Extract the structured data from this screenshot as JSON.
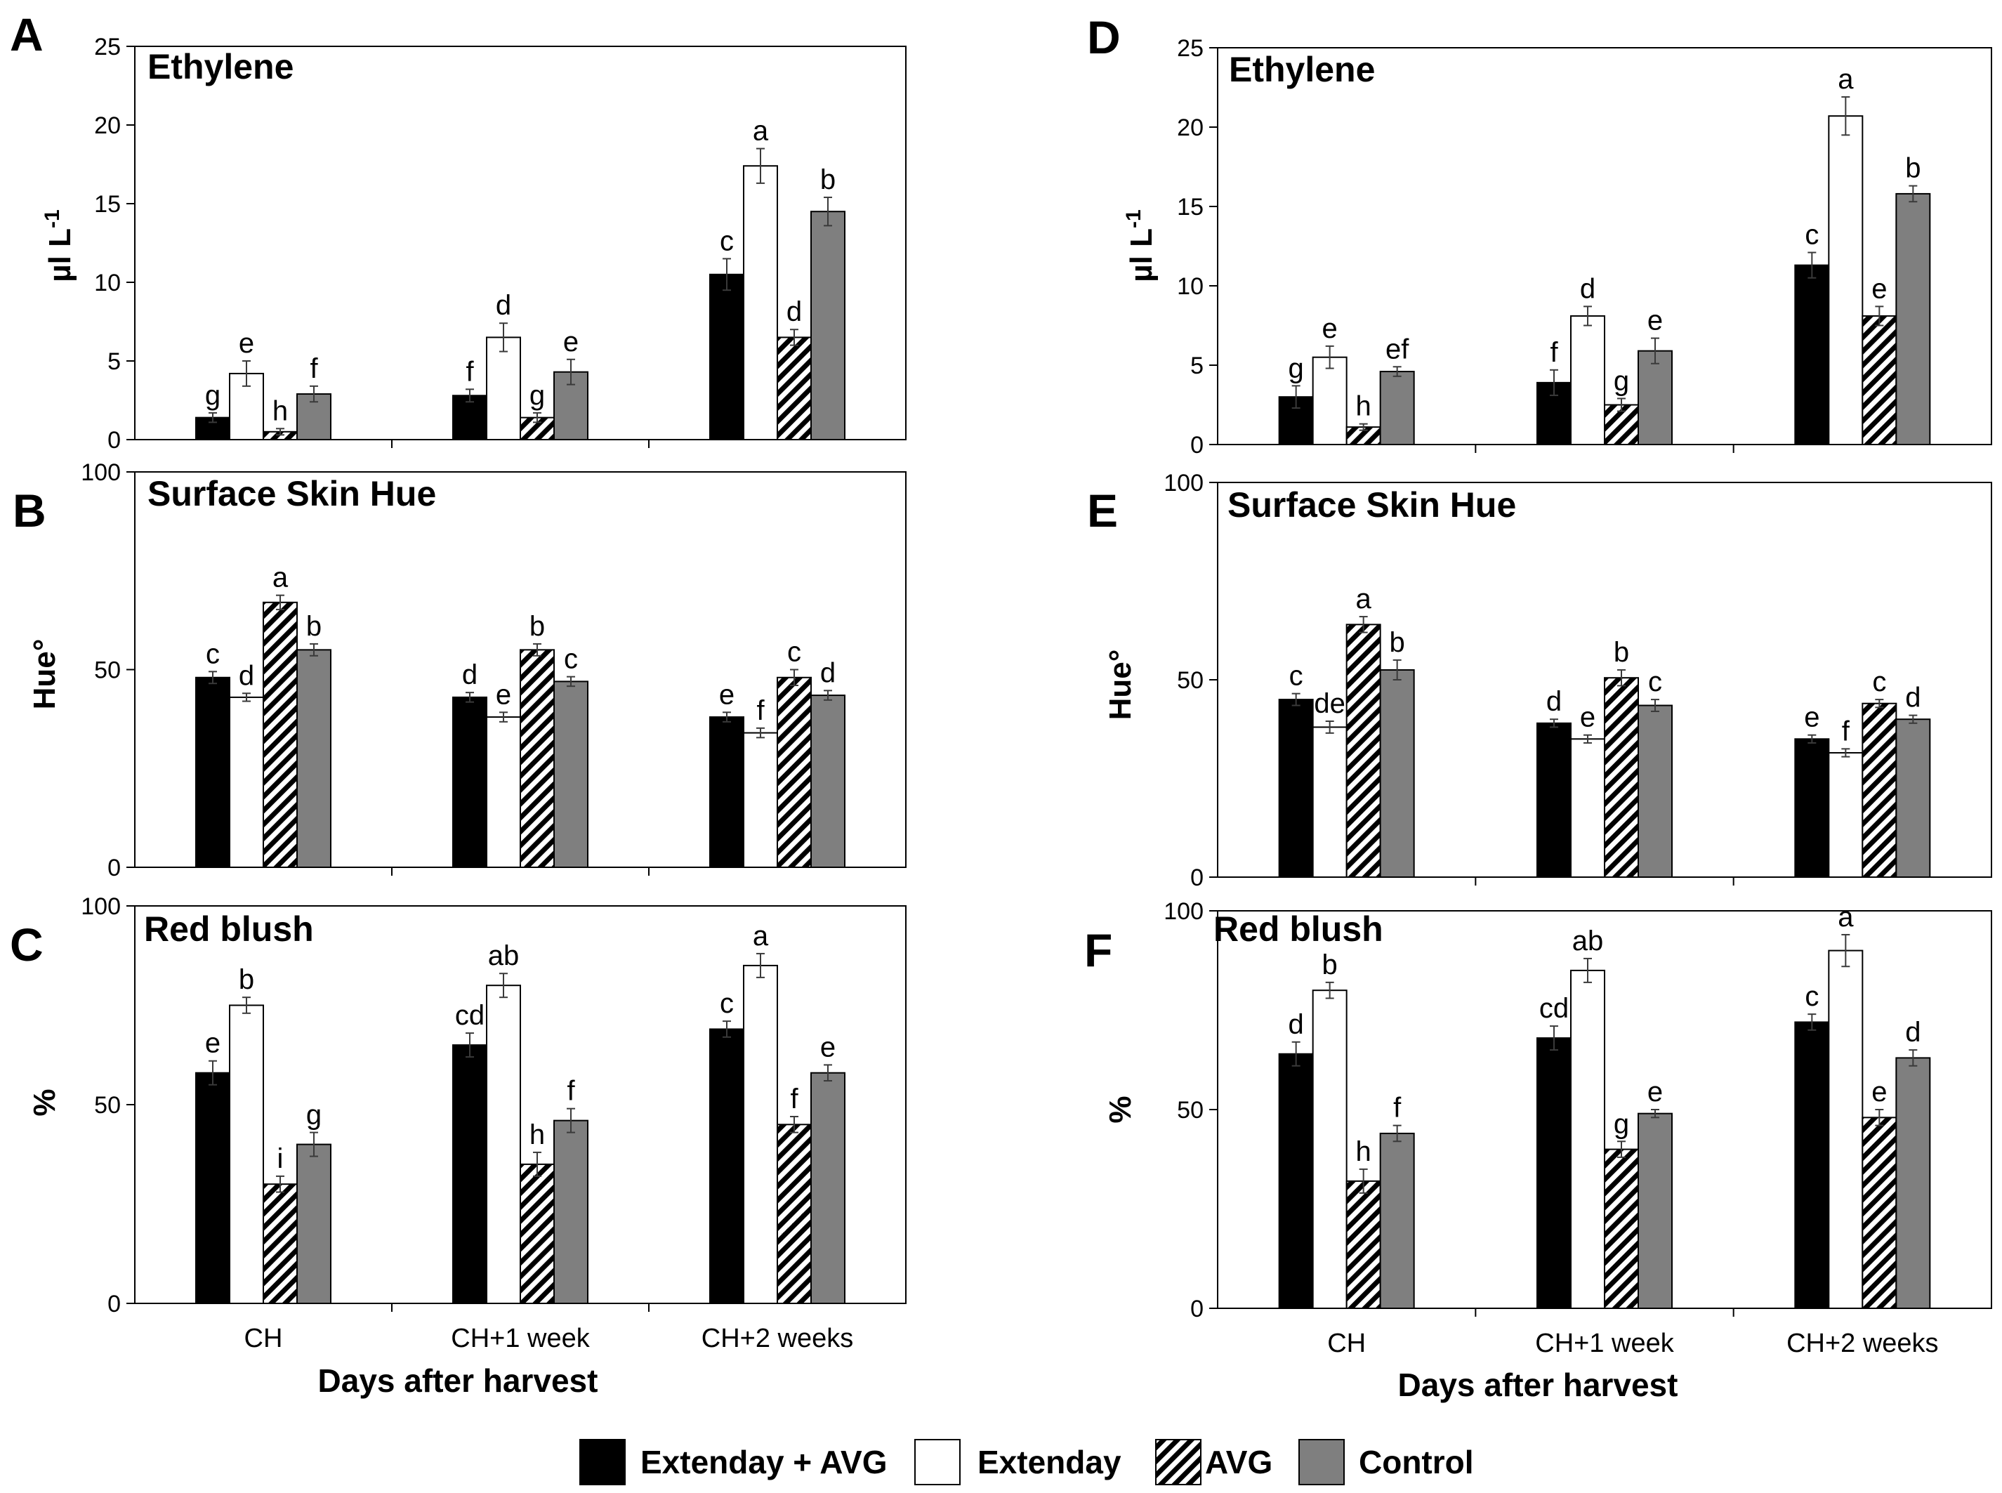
{
  "colors": {
    "extenday_avg": "#000000",
    "extenday": "#ffffff",
    "avg_hatch": "#000000",
    "control": "#7f7f7f"
  },
  "legend": [
    {
      "key": "extenday_avg",
      "label": "Extenday + AVG"
    },
    {
      "key": "extenday",
      "label": "Extenday"
    },
    {
      "key": "avg",
      "label": "AVG"
    },
    {
      "key": "control",
      "label": "Control"
    }
  ],
  "xlabel": "Days after harvest",
  "chart_data": [
    {
      "id": "A",
      "letter": "A",
      "type": "bar",
      "title": "Ethylene",
      "ylabel": "µl L-1",
      "ylim": [
        0,
        25
      ],
      "yticks": [
        0,
        5,
        10,
        15,
        20,
        25
      ],
      "categories": [
        "CH",
        "CH+1 week",
        "CH+2 weeks"
      ],
      "series": [
        {
          "name": "Extenday + AVG",
          "values": [
            1.4,
            2.8,
            10.5
          ],
          "errors": [
            0.3,
            0.4,
            1.0
          ],
          "letters": [
            "g",
            "f",
            "c"
          ]
        },
        {
          "name": "Extenday",
          "values": [
            4.2,
            6.5,
            17.4
          ],
          "errors": [
            0.8,
            0.9,
            1.1
          ],
          "letters": [
            "e",
            "d",
            "a"
          ]
        },
        {
          "name": "AVG",
          "values": [
            0.5,
            1.4,
            6.5
          ],
          "errors": [
            0.2,
            0.3,
            0.5
          ],
          "letters": [
            "h",
            "g",
            "d"
          ]
        },
        {
          "name": "Control",
          "values": [
            2.9,
            4.3,
            14.5
          ],
          "errors": [
            0.5,
            0.8,
            0.9
          ],
          "letters": [
            "f",
            "e",
            "b"
          ]
        }
      ]
    },
    {
      "id": "B",
      "letter": "B",
      "type": "bar",
      "title": "Surface Skin Hue",
      "ylabel": "Hue°",
      "ylim": [
        0,
        100
      ],
      "yticks": [
        0,
        50,
        100
      ],
      "categories": [
        "CH",
        "CH+1 week",
        "CH+2 weeks"
      ],
      "series": [
        {
          "name": "Extenday + AVG",
          "values": [
            48,
            43,
            38
          ],
          "errors": [
            1.5,
            1.2,
            1.2
          ],
          "letters": [
            "c",
            "d",
            "e"
          ]
        },
        {
          "name": "Extenday",
          "values": [
            43,
            38,
            34
          ],
          "errors": [
            1.0,
            1.2,
            1.2
          ],
          "letters": [
            "d",
            "e",
            "f"
          ]
        },
        {
          "name": "AVG",
          "values": [
            67,
            55,
            48
          ],
          "errors": [
            1.8,
            1.5,
            2.0
          ],
          "letters": [
            "a",
            "b",
            "c"
          ]
        },
        {
          "name": "Control",
          "values": [
            55,
            47,
            43.5
          ],
          "errors": [
            1.5,
            1.2,
            1.2
          ],
          "letters": [
            "b",
            "c",
            "d"
          ]
        }
      ]
    },
    {
      "id": "C",
      "letter": "C",
      "type": "bar",
      "title": "Red blush",
      "ylabel": "%",
      "ylim": [
        0,
        100
      ],
      "yticks": [
        0,
        50,
        100
      ],
      "categories": [
        "CH",
        "CH+1 week",
        "CH+2 weeks"
      ],
      "series": [
        {
          "name": "Extenday + AVG",
          "values": [
            58,
            65,
            69
          ],
          "errors": [
            3,
            3,
            2
          ],
          "letters": [
            "e",
            "cd",
            "c"
          ]
        },
        {
          "name": "Extenday",
          "values": [
            75,
            80,
            85
          ],
          "errors": [
            2,
            3,
            3
          ],
          "letters": [
            "b",
            "ab",
            "a"
          ]
        },
        {
          "name": "AVG",
          "values": [
            30,
            35,
            45
          ],
          "errors": [
            2,
            3,
            2
          ],
          "letters": [
            "i",
            "h",
            "f"
          ]
        },
        {
          "name": "Control",
          "values": [
            40,
            46,
            58
          ],
          "errors": [
            3,
            3,
            2
          ],
          "letters": [
            "g",
            "f",
            "e"
          ]
        }
      ]
    },
    {
      "id": "D",
      "letter": "D",
      "type": "bar",
      "title": "Ethylene",
      "ylabel": "µl L-1",
      "ylim": [
        0,
        25
      ],
      "yticks": [
        0,
        5,
        10,
        15,
        20,
        25
      ],
      "categories": [
        "CH",
        "CH+1 week",
        "CH+2 weeks"
      ],
      "series": [
        {
          "name": "Extenday + AVG",
          "values": [
            3.0,
            3.9,
            11.3
          ],
          "errors": [
            0.7,
            0.8,
            0.8
          ],
          "letters": [
            "g",
            "f",
            "c"
          ]
        },
        {
          "name": "Extenday",
          "values": [
            5.5,
            8.1,
            20.7
          ],
          "errors": [
            0.7,
            0.6,
            1.2
          ],
          "letters": [
            "e",
            "d",
            "a"
          ]
        },
        {
          "name": "AVG",
          "values": [
            1.1,
            2.5,
            8.1
          ],
          "errors": [
            0.2,
            0.4,
            0.6
          ],
          "letters": [
            "h",
            "g",
            "e"
          ]
        },
        {
          "name": "Control",
          "values": [
            4.6,
            5.9,
            15.8
          ],
          "errors": [
            0.3,
            0.8,
            0.5
          ],
          "letters": [
            "ef",
            "e",
            "b"
          ]
        }
      ]
    },
    {
      "id": "E",
      "letter": "E",
      "type": "bar",
      "title": "Surface Skin Hue",
      "ylabel": "Hue°",
      "ylim": [
        0,
        100
      ],
      "yticks": [
        0,
        50,
        100
      ],
      "categories": [
        "CH",
        "CH+1 week",
        "CH+2 weeks"
      ],
      "series": [
        {
          "name": "Extenday + AVG",
          "values": [
            45,
            39,
            35
          ],
          "errors": [
            1.5,
            1.0,
            1.0
          ],
          "letters": [
            "c",
            "d",
            "e"
          ]
        },
        {
          "name": "Extenday",
          "values": [
            38,
            35,
            31.5
          ],
          "errors": [
            1.5,
            1.0,
            1.0
          ],
          "letters": [
            "de",
            "e",
            "f"
          ]
        },
        {
          "name": "AVG",
          "values": [
            64,
            50.5,
            44
          ],
          "errors": [
            2.0,
            2.0,
            1.0
          ],
          "letters": [
            "a",
            "b",
            "c"
          ]
        },
        {
          "name": "Control",
          "values": [
            52.5,
            43.5,
            40
          ],
          "errors": [
            2.5,
            1.5,
            1.0
          ],
          "letters": [
            "b",
            "c",
            "d"
          ]
        }
      ]
    },
    {
      "id": "F",
      "letter": "F",
      "type": "bar",
      "title": "Red blush",
      "ylabel": "%",
      "ylim": [
        0,
        100
      ],
      "yticks": [
        0,
        50,
        100
      ],
      "categories": [
        "CH",
        "CH+1 week",
        "CH+2 weeks"
      ],
      "series": [
        {
          "name": "Extenday + AVG",
          "values": [
            64,
            68,
            72
          ],
          "errors": [
            3,
            3,
            2
          ],
          "letters": [
            "d",
            "cd",
            "c"
          ]
        },
        {
          "name": "Extenday",
          "values": [
            80,
            85,
            90
          ],
          "errors": [
            2,
            3,
            4
          ],
          "letters": [
            "b",
            "ab",
            "a"
          ]
        },
        {
          "name": "AVG",
          "values": [
            32,
            40,
            48
          ],
          "errors": [
            3,
            2,
            2
          ],
          "letters": [
            "h",
            "g",
            "e"
          ]
        },
        {
          "name": "Control",
          "values": [
            44,
            49,
            63
          ],
          "errors": [
            2,
            1,
            2
          ],
          "letters": [
            "f",
            "e",
            "d"
          ]
        }
      ]
    }
  ]
}
